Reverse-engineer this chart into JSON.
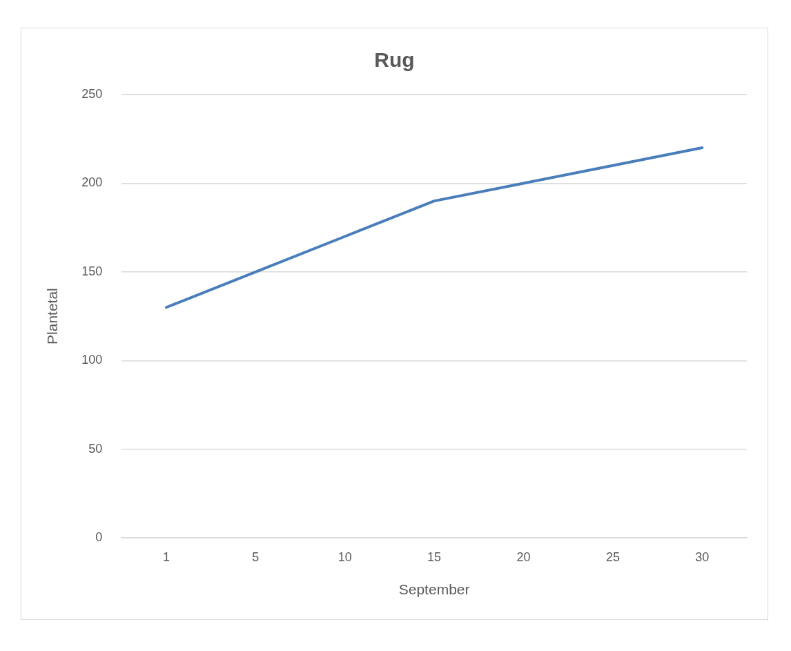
{
  "chart_data": {
    "type": "line",
    "title": "Rug",
    "xlabel": "September",
    "ylabel": "Plantetal",
    "categories": [
      "1",
      "5",
      "10",
      "15",
      "20",
      "25",
      "30"
    ],
    "series": [
      {
        "color": "#4a7ebb",
        "values": [
          130,
          150,
          170,
          190,
          200,
          210,
          220
        ]
      }
    ],
    "ylim": [
      0,
      250
    ],
    "yticks": [
      0,
      50,
      100,
      150,
      200,
      250
    ],
    "grid": "y",
    "legend": false,
    "marker": "none",
    "line_style": "solid"
  }
}
